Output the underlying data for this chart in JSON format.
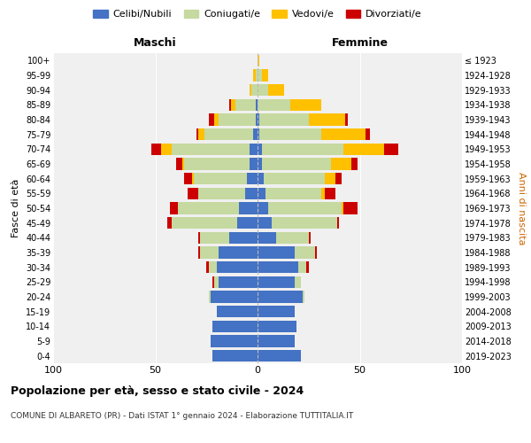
{
  "age_groups": [
    "0-4",
    "5-9",
    "10-14",
    "15-19",
    "20-24",
    "25-29",
    "30-34",
    "35-39",
    "40-44",
    "45-49",
    "50-54",
    "55-59",
    "60-64",
    "65-69",
    "70-74",
    "75-79",
    "80-84",
    "85-89",
    "90-94",
    "95-99",
    "100+"
  ],
  "birth_years": [
    "2019-2023",
    "2014-2018",
    "2009-2013",
    "2004-2008",
    "1999-2003",
    "1994-1998",
    "1989-1993",
    "1984-1988",
    "1979-1983",
    "1974-1978",
    "1969-1973",
    "1964-1968",
    "1959-1963",
    "1954-1958",
    "1949-1953",
    "1944-1948",
    "1939-1943",
    "1934-1938",
    "1929-1933",
    "1924-1928",
    "≤ 1923"
  ],
  "colors": {
    "celibi": "#4472c4",
    "coniugati": "#c5d9a0",
    "vedovi": "#ffc000",
    "divorziati": "#cc0000"
  },
  "males": {
    "celibi": [
      22,
      23,
      22,
      20,
      23,
      19,
      20,
      19,
      14,
      10,
      9,
      6,
      5,
      4,
      4,
      2,
      1,
      1,
      0,
      0,
      0
    ],
    "coniugati": [
      0,
      0,
      0,
      0,
      1,
      2,
      4,
      9,
      14,
      32,
      30,
      23,
      26,
      32,
      38,
      24,
      18,
      10,
      3,
      1,
      0
    ],
    "vedovi": [
      0,
      0,
      0,
      0,
      0,
      0,
      0,
      0,
      0,
      0,
      0,
      0,
      1,
      1,
      5,
      3,
      2,
      2,
      1,
      1,
      0
    ],
    "divorziati": [
      0,
      0,
      0,
      0,
      0,
      1,
      1,
      1,
      1,
      2,
      4,
      5,
      4,
      3,
      5,
      1,
      3,
      1,
      0,
      0,
      0
    ]
  },
  "females": {
    "celibi": [
      21,
      18,
      19,
      18,
      22,
      18,
      20,
      18,
      9,
      7,
      5,
      4,
      3,
      2,
      2,
      1,
      1,
      0,
      0,
      0,
      0
    ],
    "coniugati": [
      0,
      0,
      0,
      0,
      1,
      3,
      4,
      10,
      16,
      32,
      36,
      27,
      30,
      34,
      40,
      30,
      24,
      16,
      5,
      2,
      0
    ],
    "vedovi": [
      0,
      0,
      0,
      0,
      0,
      0,
      0,
      0,
      0,
      0,
      1,
      2,
      5,
      10,
      20,
      22,
      18,
      15,
      8,
      3,
      1
    ],
    "divorziati": [
      0,
      0,
      0,
      0,
      0,
      0,
      1,
      1,
      1,
      1,
      7,
      5,
      3,
      3,
      7,
      2,
      1,
      0,
      0,
      0,
      0
    ]
  },
  "title": "Popolazione per età, sesso e stato civile - 2024",
  "subtitle": "COMUNE DI ALBARETO (PR) - Dati ISTAT 1° gennaio 2024 - Elaborazione TUTTITALIA.IT",
  "xlabel_left": "Maschi",
  "xlabel_right": "Femmine",
  "ylabel_left": "Fasce di età",
  "ylabel_right": "Anni di nascita",
  "xlim": 100,
  "legend_labels": [
    "Celibi/Nubili",
    "Coniugati/e",
    "Vedovi/e",
    "Divorziati/e"
  ],
  "background_color": "#f0f0f0",
  "fig_width": 6.0,
  "fig_height": 5.0
}
